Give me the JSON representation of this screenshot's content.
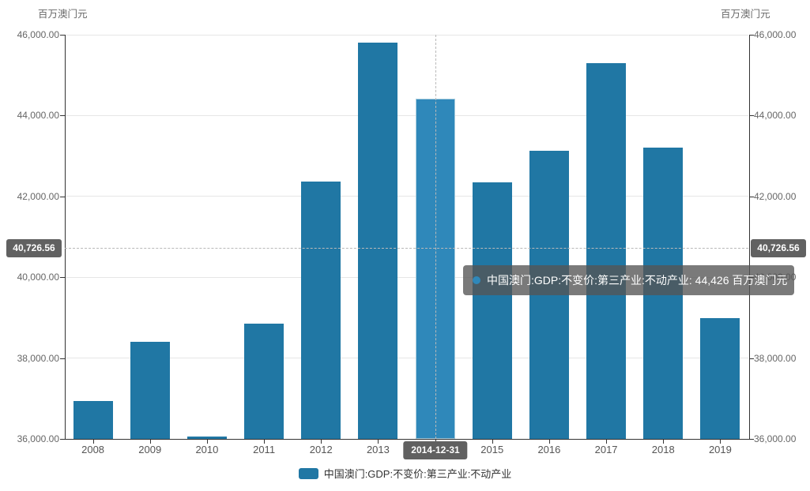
{
  "chart_data": {
    "type": "bar",
    "title": "",
    "categories": [
      "2008",
      "2009",
      "2010",
      "2011",
      "2012",
      "2013",
      "2014",
      "2015",
      "2016",
      "2017",
      "2018",
      "2019"
    ],
    "values": [
      36940,
      38400,
      36060,
      38850,
      42370,
      45800,
      44426,
      42350,
      43130,
      45290,
      43210,
      38990
    ],
    "series_name": "中国澳门:GDP:不变价:第三产业:不动产业",
    "ylim": [
      36000,
      46000
    ],
    "yticks": [
      36000,
      38000,
      40000,
      42000,
      44000,
      46000
    ],
    "ytick_labels": [
      "36,000.00",
      "38,000.00",
      "40,000.00",
      "42,000.00",
      "44,000.00",
      "46,000.00"
    ],
    "y_axis_title_left": "百万澳门元",
    "y_axis_title_right": "百万澳门元",
    "grid": true,
    "legend_position": "bottom",
    "bar_color": "#2077a4",
    "highlight": {
      "category_index": 6,
      "bar_color": "#2f88ba",
      "x_label": "2014-12-31",
      "value": 44426
    },
    "crosshair": {
      "y_value": 40726.56,
      "y_label": "40,726.56"
    }
  },
  "tooltip": {
    "text": "中国澳门:GDP:不变价:第三产业:不动产业: 44,426 百万澳门元",
    "marker_color": "#2f88ba"
  },
  "legend": {
    "label": "中国澳门:GDP:不变价:第三产业:不动产业",
    "marker_color": "#2077a4"
  }
}
